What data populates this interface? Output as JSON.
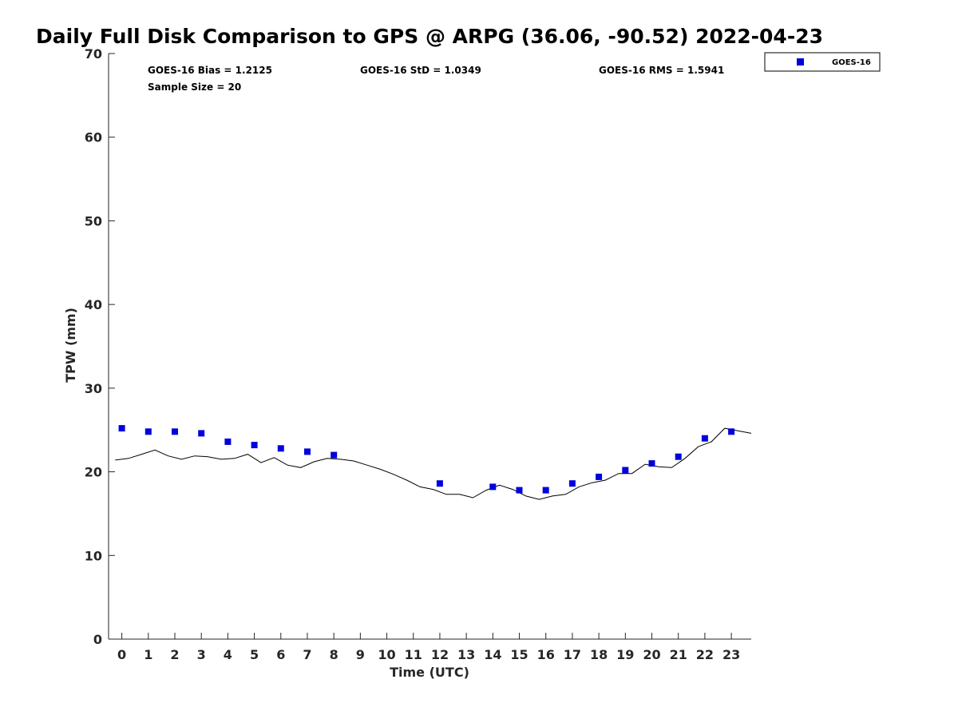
{
  "chart_data": {
    "type": "scatter",
    "title": "Daily Full Disk Comparison to GPS @ ARPG (36.06, -90.52) 2022-04-23",
    "xlabel": "Time (UTC)",
    "ylabel": "TPW (mm)",
    "xlim": [
      -0.5,
      23.75
    ],
    "ylim": [
      0,
      70
    ],
    "x_ticks": [
      0,
      1,
      2,
      3,
      4,
      5,
      6,
      7,
      8,
      9,
      10,
      11,
      12,
      13,
      14,
      15,
      16,
      17,
      18,
      19,
      20,
      21,
      22,
      23
    ],
    "y_ticks": [
      0,
      10,
      20,
      30,
      40,
      50,
      60,
      70
    ],
    "grid": false,
    "legend": {
      "placement": "outside-top-right",
      "entries": [
        "GOES-16"
      ]
    },
    "stats": {
      "bias": "GOES-16 Bias = 1.2125",
      "std": "GOES-16 StD = 1.0349",
      "rms": "GOES-16 RMS = 1.5941",
      "sample": "Sample Size = 20"
    },
    "series": [
      {
        "name": "GOES-16",
        "marker": "square",
        "color": "#0000dd",
        "x": [
          0,
          1,
          2,
          3,
          4,
          5,
          6,
          7,
          8,
          12,
          14,
          15,
          16,
          17,
          18,
          19,
          20,
          21,
          22,
          23
        ],
        "y": [
          25.2,
          24.8,
          24.8,
          24.6,
          23.6,
          23.2,
          22.8,
          22.4,
          22.0,
          18.6,
          18.2,
          17.8,
          17.8,
          18.6,
          19.4,
          20.2,
          21.0,
          21.8,
          24.0,
          24.8
        ]
      },
      {
        "marker": "line",
        "color": "#000000",
        "x": [
          -0.25,
          0.25,
          0.75,
          1.25,
          1.75,
          2.25,
          2.75,
          3.25,
          3.75,
          4.25,
          4.75,
          5.25,
          5.75,
          6.25,
          6.75,
          7.25,
          7.75,
          8.25,
          8.75,
          9.25,
          9.75,
          10.25,
          10.75,
          11.25,
          11.75,
          12.25,
          12.75,
          13.25,
          13.75,
          14.25,
          14.75,
          15.25,
          15.75,
          16.25,
          16.75,
          17.25,
          17.75,
          18.25,
          18.75,
          19.25,
          19.75,
          20.25,
          20.75,
          21.25,
          21.75,
          22.25,
          22.75,
          23.25,
          23.75
        ],
        "y": [
          21.4,
          21.6,
          22.1,
          22.6,
          21.9,
          21.5,
          21.9,
          21.8,
          21.5,
          21.6,
          22.1,
          21.1,
          21.7,
          20.8,
          20.5,
          21.2,
          21.6,
          21.5,
          21.3,
          20.8,
          20.3,
          19.7,
          19.0,
          18.2,
          17.9,
          17.3,
          17.3,
          16.9,
          17.8,
          18.4,
          17.9,
          17.1,
          16.7,
          17.1,
          17.3,
          18.2,
          18.7,
          19.0,
          19.8,
          19.8,
          20.9,
          20.6,
          20.5,
          21.6,
          23.0,
          23.6,
          25.2,
          24.9,
          24.6
        ]
      }
    ]
  }
}
